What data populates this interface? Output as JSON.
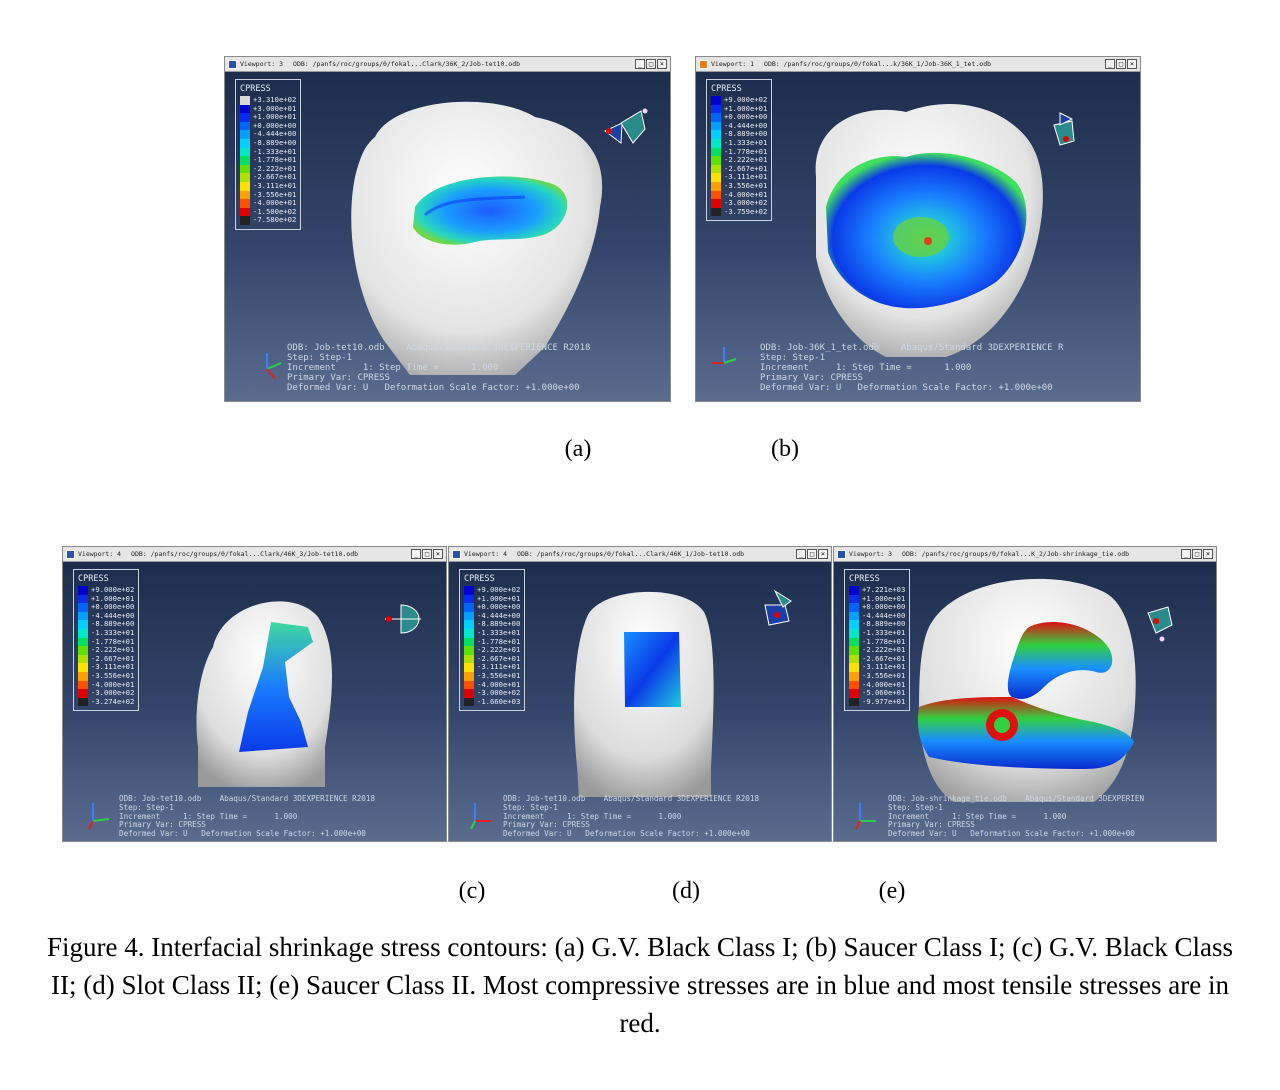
{
  "panels": [
    {
      "id": "a",
      "title_bar": {
        "viewport": "Viewport: 3",
        "odb_path": "ODB: /panfs/roc/groups/0/fokal...Clark/36K_2/Job-tet10.odb"
      },
      "legend": {
        "title": "CPRESS",
        "values": [
          "+3.310e+02",
          "+3.000e+01",
          "+1.000e+01",
          "+0.000e+00",
          "-4.444e+00",
          "-8.889e+00",
          "-1.333e+01",
          "-1.778e+01",
          "-2.222e+01",
          "-2.667e+01",
          "-3.111e+01",
          "-3.556e+01",
          "-4.000e+01",
          "-1.500e+02",
          "-7.580e+02"
        ],
        "colors": [
          "#d8d8d8",
          "#0000d0",
          "#0a2cf0",
          "#0064ff",
          "#00a0ff",
          "#00d0ff",
          "#00e8c8",
          "#00e060",
          "#60e000",
          "#b0e000",
          "#ffe000",
          "#ffa000",
          "#ff5000",
          "#e00000",
          "#222222"
        ]
      },
      "info_lines": [
        "ODB: Job-tet10.odb    Abaqus/Standard 3DEXPERIENCE R2018",
        "Step: Step-1",
        "Increment     1: Step Time =      1.000",
        "Primary Var: CPRESS",
        "Deformed Var: U   Deformation Scale Factor: +1.000e+00"
      ],
      "triad_axes": [
        "Z",
        "X",
        "Y"
      ],
      "label": "(a)"
    },
    {
      "id": "b",
      "title_bar": {
        "viewport": "Viewport: 1",
        "odb_path": "ODB: /panfs/roc/groups/0/fokal...k/36K_1/Job-36K_1_tet.odb"
      },
      "legend": {
        "title": "CPRESS",
        "values": [
          "+9.000e+02",
          "+1.000e+01",
          "+0.000e+00",
          "-4.444e+00",
          "-8.889e+00",
          "-1.333e+01",
          "-1.778e+01",
          "-2.222e+01",
          "-2.667e+01",
          "-3.111e+01",
          "-3.556e+01",
          "-4.000e+01",
          "-3.000e+02",
          "-3.759e+02"
        ],
        "colors": [
          "#0000d0",
          "#0a2cf0",
          "#0064ff",
          "#00a0ff",
          "#00d0ff",
          "#00e8c8",
          "#00e060",
          "#60e000",
          "#b0e000",
          "#ffe000",
          "#ffa000",
          "#ff5000",
          "#e00000",
          "#222222"
        ]
      },
      "info_lines": [
        "ODB: Job-36K_1_tet.odb    Abaqus/Standard 3DEXPERIENCE R",
        "Step: Step-1",
        "Increment     1: Step Time =      1.000",
        "Primary Var: CPRESS",
        "Deformed Var: U   Deformation Scale Factor: +1.000e+00"
      ],
      "triad_axes": [
        "Z",
        "X",
        "Y"
      ],
      "label": "(b)"
    },
    {
      "id": "c",
      "title_bar": {
        "viewport": "Viewport: 4",
        "odb_path": "ODB: /panfs/roc/groups/0/fokal...Clark/46K_3/Job-tet10.odb"
      },
      "legend": {
        "title": "CPRESS",
        "values": [
          "+9.000e+02",
          "+1.000e+01",
          "+0.000e+00",
          "-4.444e+00",
          "-8.889e+00",
          "-1.333e+01",
          "-1.778e+01",
          "-2.222e+01",
          "-2.667e+01",
          "-3.111e+01",
          "-3.556e+01",
          "-4.000e+01",
          "-3.000e+02",
          "-3.274e+02"
        ],
        "colors": [
          "#0000d0",
          "#0a2cf0",
          "#0064ff",
          "#00a0ff",
          "#00d0ff",
          "#00e8c8",
          "#00e060",
          "#60e000",
          "#b0e000",
          "#ffe000",
          "#ffa000",
          "#ff5000",
          "#e00000",
          "#222222"
        ]
      },
      "info_lines": [
        "ODB: Job-tet10.odb    Abaqus/Standard 3DEXPERIENCE R2018",
        "Step: Step-1",
        "Increment     1: Step Time =      1.000",
        "Primary Var: CPRESS",
        "Deformed Var: U   Deformation Scale Factor: +1.000e+00"
      ],
      "triad_axes": [
        "Z",
        "X",
        "Y"
      ],
      "label": "(c)"
    },
    {
      "id": "d",
      "title_bar": {
        "viewport": "Viewport: 4",
        "odb_path": "ODB: /panfs/roc/groups/0/fokal...Clark/46K_1/Job-tet10.odb"
      },
      "legend": {
        "title": "CPRESS",
        "values": [
          "+9.000e+02",
          "+1.000e+01",
          "+0.000e+00",
          "-4.444e+00",
          "-8.889e+00",
          "-1.333e+01",
          "-1.778e+01",
          "-2.222e+01",
          "-2.667e+01",
          "-3.111e+01",
          "-3.556e+01",
          "-4.000e+01",
          "-3.000e+02",
          "-1.660e+03"
        ],
        "colors": [
          "#0000d0",
          "#0a2cf0",
          "#0064ff",
          "#00a0ff",
          "#00d0ff",
          "#00e8c8",
          "#00e060",
          "#60e000",
          "#b0e000",
          "#ffe000",
          "#ffa000",
          "#ff5000",
          "#e00000",
          "#222222"
        ]
      },
      "info_lines": [
        "ODB: Job-tet10.odb    Abaqus/Standard 3DEXPERIENCE R2018",
        "Step: Step-1",
        "Increment     1: Step Time =      1.000",
        "Primary Var: CPRESS",
        "Deformed Var: U   Deformation Scale Factor: +1.000e+00"
      ],
      "triad_axes": [
        "Z",
        "X",
        "Y"
      ],
      "label": "(d)"
    },
    {
      "id": "e",
      "title_bar": {
        "viewport": "Viewport: 3",
        "odb_path": "ODB: /panfs/roc/groups/0/fokal...K_2/Job-shrinkage_tie.odb"
      },
      "legend": {
        "title": "CPRESS",
        "values": [
          "+7.221e+03",
          "+1.000e+01",
          "+0.000e+00",
          "-4.444e+00",
          "-8.889e+00",
          "-1.333e+01",
          "-1.778e+01",
          "-2.222e+01",
          "-2.667e+01",
          "-3.111e+01",
          "-3.556e+01",
          "-4.000e+01",
          "-5.060e+01",
          "-9.977e+01"
        ],
        "colors": [
          "#0000d0",
          "#0a2cf0",
          "#0064ff",
          "#00a0ff",
          "#00d0ff",
          "#00e8c8",
          "#00e060",
          "#60e000",
          "#b0e000",
          "#ffe000",
          "#ffa000",
          "#ff5000",
          "#e00000",
          "#222222"
        ]
      },
      "info_lines": [
        "ODB: Job-shrinkage_tie.odb    Abaqus/Standard 3DEXPERIEN",
        "Step: Step-1",
        "Increment     1: Step Time =      1.000",
        "Primary Var: CPRESS",
        "Deformed Var: U   Deformation Scale Factor: +1.000e+00"
      ],
      "triad_axes": [
        "Z",
        "X",
        "Y"
      ],
      "label": "(e)"
    }
  ],
  "figure_caption": "Figure 4. Interfacial shrinkage stress contours: (a) G.V. Black Class I; (b) Saucer Class I; (c) G.V. Black Class II; (d) Slot Class II; (e) Saucer Class II. Most compressive stresses are in blue and most tensile stresses are in red."
}
